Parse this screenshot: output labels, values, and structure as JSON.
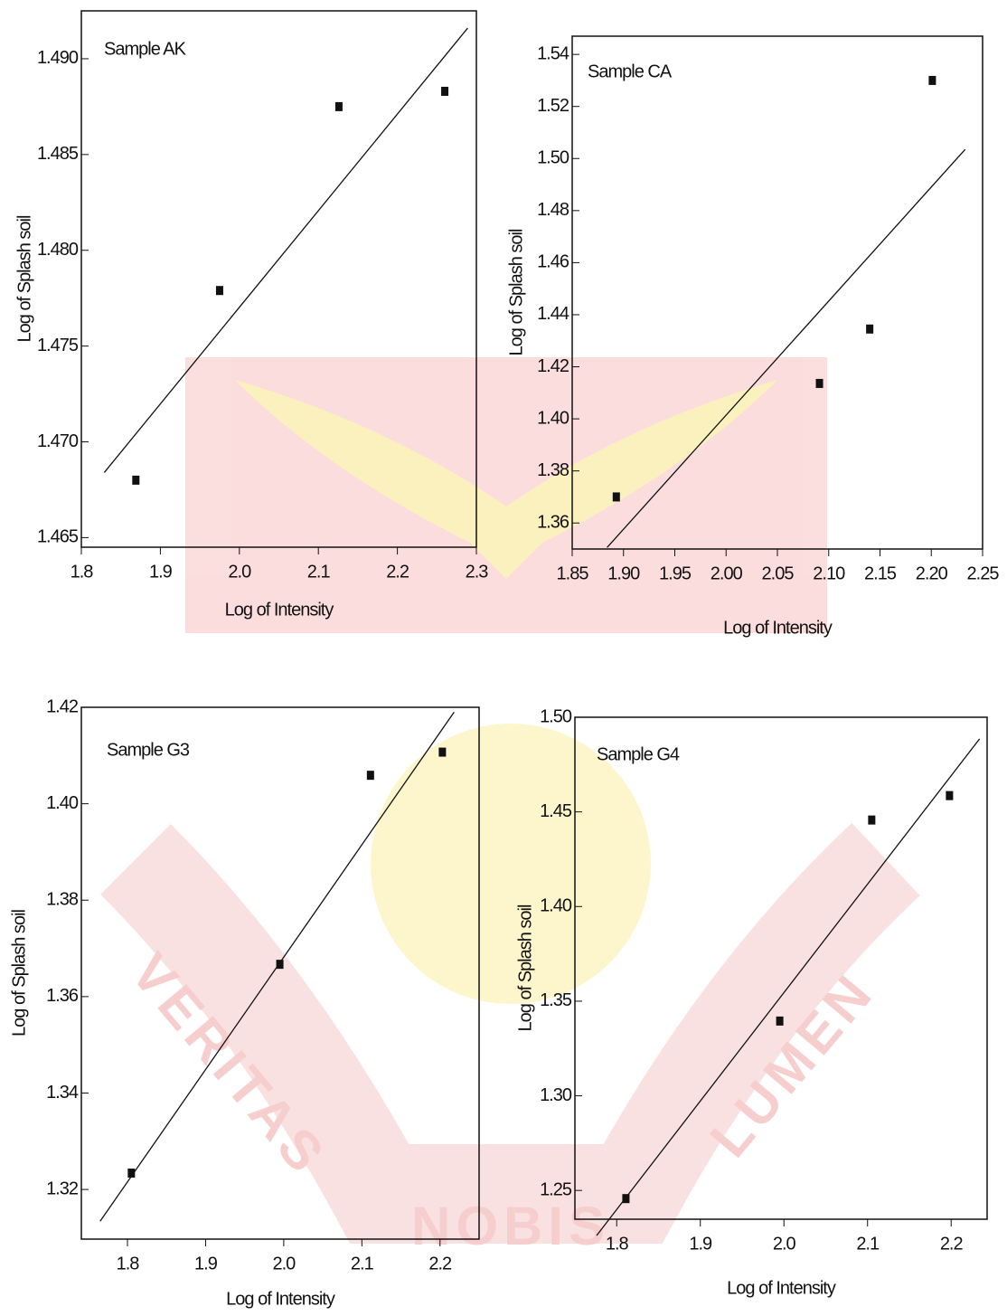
{
  "chart_data": [
    {
      "type": "scatter",
      "annotation": "Sample AK",
      "x_label": "Log of Intensity",
      "y_label": "Log of Splash soil",
      "xlim": [
        1.8,
        2.3
      ],
      "ylim": [
        1.4645,
        1.4925
      ],
      "xticks": [
        1.8,
        1.9,
        {
          "value": 2,
          "label": "2.0"
        },
        2.1,
        2.2,
        2.3
      ],
      "yticks": [
        1.465,
        {
          "value": 1.47,
          "label": "1.470"
        },
        1.475,
        {
          "value": 1.48,
          "label": "1.480"
        },
        1.485,
        {
          "value": 1.49,
          "label": "1.490"
        }
      ],
      "points": {
        "x": [
          1.869,
          1.975,
          2.126,
          2.26
        ],
        "y": [
          1.468,
          1.4779,
          1.4875,
          1.4883
        ]
      },
      "fit_line": {
        "x": [
          1.829,
          2.289
        ],
        "y": [
          1.4684,
          1.4916
        ]
      }
    },
    {
      "type": "scatter",
      "annotation": "Sample CA",
      "x_label": "Log of Intensity",
      "y_label": "Log of Splash soil",
      "xlim": [
        1.85,
        2.25
      ],
      "ylim": [
        1.35,
        1.547
      ],
      "xticks": [
        1.85,
        {
          "value": 1.9,
          "label": "1.90"
        },
        1.95,
        {
          "value": 2,
          "label": "2.00"
        },
        2.05,
        {
          "value": 2.1,
          "label": "2.10"
        },
        2.15,
        {
          "value": 2.2,
          "label": "2.20"
        },
        2.25
      ],
      "yticks": [
        1.36,
        1.38,
        {
          "value": 1.4,
          "label": "1.40"
        },
        1.42,
        1.44,
        1.46,
        1.48,
        {
          "value": 1.5,
          "label": "1.50"
        },
        1.52,
        1.54
      ],
      "points": {
        "x": [
          1.893,
          2.091,
          2.14,
          2.201
        ],
        "y": [
          1.37,
          1.4136,
          1.4345,
          1.53
        ]
      },
      "fit_line": {
        "x": [
          1.884,
          2.233
        ],
        "y": [
          1.3506,
          1.5035
        ]
      }
    },
    {
      "type": "scatter",
      "annotation": "Sample G3",
      "x_label": "Log of Intensity",
      "y_label": "Log of Splash soil",
      "xlim": [
        1.741,
        2.25
      ],
      "ylim": [
        1.3097,
        1.42
      ],
      "xticks": [
        1.8,
        1.9,
        {
          "value": 2,
          "label": "2.0"
        },
        2.1,
        2.2
      ],
      "yticks": [
        1.32,
        1.34,
        1.36,
        1.38,
        {
          "value": 1.4,
          "label": "1.40"
        },
        1.42
      ],
      "points": {
        "x": [
          1.805,
          1.995,
          2.111,
          2.203
        ],
        "y": [
          1.3234,
          1.3667,
          1.4059,
          1.4107
        ]
      },
      "fit_line": {
        "x": [
          1.765,
          2.218
        ],
        "y": [
          1.3134,
          1.419
        ]
      }
    },
    {
      "type": "scatter",
      "annotation": "Sample G4",
      "x_label": "Log of Intensity",
      "y_label": "Log of Splash soil",
      "xlim": [
        1.75,
        2.243
      ],
      "ylim": [
        1.2348,
        1.5
      ],
      "xticks": [
        1.8,
        1.9,
        {
          "value": 2,
          "label": "2.0"
        },
        2.1,
        2.2
      ],
      "yticks": [
        1.25,
        {
          "value": 1.3,
          "label": "1.30"
        },
        1.35,
        {
          "value": 1.4,
          "label": "1.40"
        },
        1.45,
        {
          "value": 1.5,
          "label": "1.50"
        }
      ],
      "points": {
        "x": [
          1.811,
          1.995,
          2.105,
          2.198
        ],
        "y": [
          1.2457,
          1.3395,
          1.4457,
          1.4586
        ]
      },
      "fit_line": {
        "x": [
          1.776,
          2.234
        ],
        "y": [
          1.2262,
          1.4886
        ]
      }
    }
  ],
  "watermark": {
    "texts": [
      "VERITAS",
      "LUMEN",
      "NOBIS"
    ]
  }
}
